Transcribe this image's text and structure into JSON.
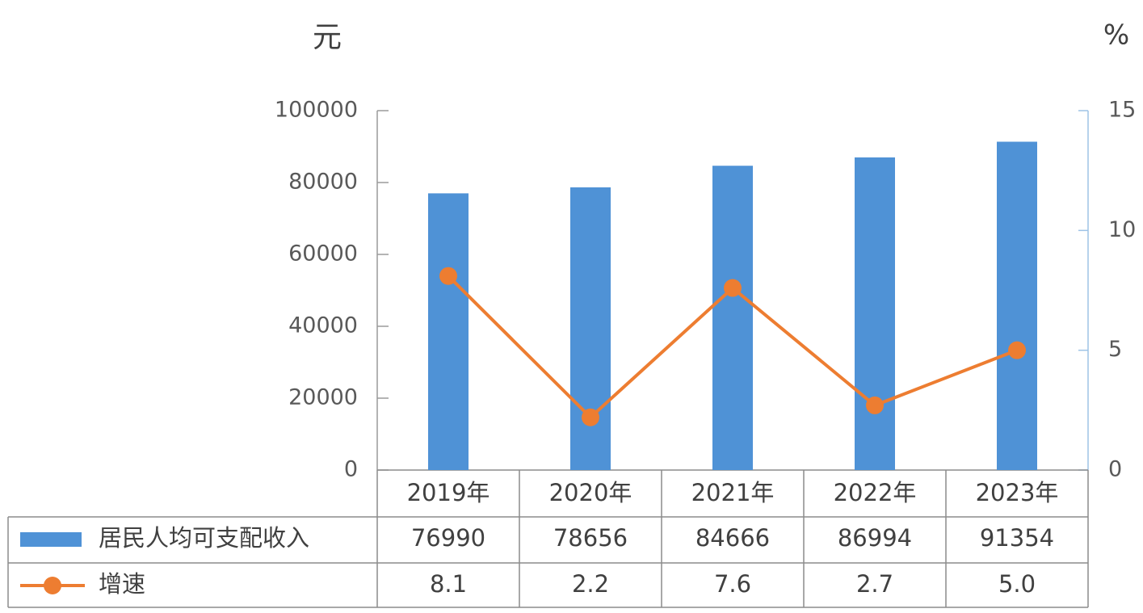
{
  "chart_data": {
    "type": "bar-line",
    "y_label": "元",
    "y2_label": "%",
    "categories": [
      "2019年",
      "2020年",
      "2021年",
      "2022年",
      "2023年"
    ],
    "series": [
      {
        "name": "居民人均可支配收入",
        "type": "bar",
        "color": "#4f92d6",
        "values": [
          76990,
          78656,
          84666,
          86994,
          91354
        ]
      },
      {
        "name": "增速",
        "type": "line",
        "axis": "y2",
        "color": "#ed7d31",
        "values": [
          8.1,
          2.2,
          7.6,
          2.7,
          5.0
        ],
        "value_labels": [
          "8.1",
          "2.2",
          "7.6",
          "2.7",
          "5.0"
        ]
      }
    ],
    "ylim": [
      0,
      100000
    ],
    "yticks": [
      0,
      20000,
      40000,
      60000,
      80000,
      100000
    ],
    "y2lim": [
      0,
      15
    ],
    "y2ticks": [
      0,
      5,
      10,
      15
    ],
    "grid": false,
    "data_table": true
  }
}
